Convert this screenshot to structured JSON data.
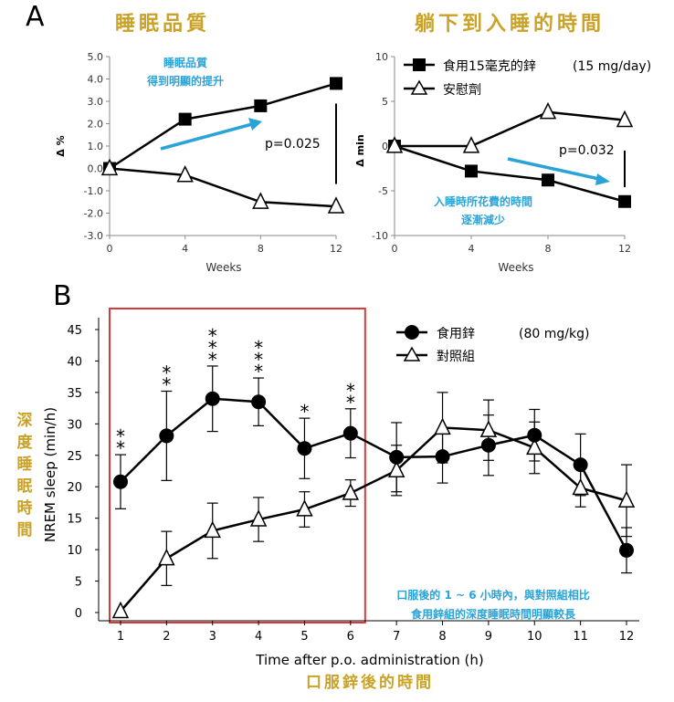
{
  "panel_a_letter": "A",
  "panel_b_letter": "B",
  "colors": {
    "gold": "#C9A227",
    "blue": "#2AA3D8",
    "red": "#D83A3A",
    "ink": "#000000"
  },
  "chart_data": [
    {
      "type": "line",
      "title": "睡眠品質",
      "xlabel": "Weeks",
      "ylabel": "Δ %",
      "x": [
        0,
        4,
        8,
        12
      ],
      "xticks": [
        "0",
        "4",
        "8",
        "12"
      ],
      "ylim": [
        -3,
        5
      ],
      "yticks": [
        "5.0",
        "4.0",
        "3.0",
        "2.0",
        "1.0",
        "0.0",
        "-1.0",
        "-2.0",
        "-3.0"
      ],
      "series": [
        {
          "marker": "square",
          "values": [
            0.0,
            2.2,
            2.8,
            3.8
          ]
        },
        {
          "marker": "triangle",
          "values": [
            0.0,
            -0.3,
            -1.5,
            -1.7
          ]
        }
      ],
      "annotation": {
        "line1": "睡眠品質",
        "line2": "得到明顯的提升"
      },
      "pvalue": "p=0.025",
      "grid": false
    },
    {
      "type": "line",
      "title": "躺下到入睡的時間",
      "xlabel": "Weeks",
      "ylabel": "Δ min",
      "x": [
        0,
        4,
        8,
        12
      ],
      "xticks": [
        "0",
        "4",
        "8",
        "12"
      ],
      "ylim": [
        -10,
        10
      ],
      "yticks": [
        "10",
        "5",
        "0",
        "-5",
        "-10"
      ],
      "series": [
        {
          "name": "食用15毫克的鋅",
          "marker": "square",
          "values": [
            0,
            -2.8,
            -3.8,
            -6.2
          ]
        },
        {
          "name": "安慰劑",
          "marker": "triangle",
          "values": [
            0,
            0,
            3.8,
            2.9
          ]
        }
      ],
      "legend_dose": "(15 mg/day)",
      "annotation": {
        "line1": "入睡時所花費的時間",
        "line2": "逐漸減少"
      },
      "pvalue": "p=0.032",
      "grid": false
    },
    {
      "type": "line",
      "xlabel": "Time after p.o. administration (h)",
      "xlabel_cn": "口服鋅後的時間",
      "ylabel": "NREM sleep (min/h)",
      "ylabel_cn": "深度睡眠時間",
      "x": [
        1,
        2,
        3,
        4,
        5,
        6,
        7,
        8,
        9,
        10,
        11,
        12
      ],
      "xticks": [
        "1",
        "2",
        "3",
        "4",
        "5",
        "6",
        "7",
        "8",
        "9",
        "10",
        "11",
        "12"
      ],
      "ylim": [
        0,
        45
      ],
      "yticks": [
        "45",
        "40",
        "35",
        "30",
        "25",
        "20",
        "15",
        "10",
        "5",
        "0"
      ],
      "series": [
        {
          "name": "食用鋅",
          "marker": "circle",
          "values": [
            20.8,
            28.1,
            34.0,
            33.5,
            26.1,
            28.5,
            24.7,
            24.8,
            26.6,
            28.2,
            23.5,
            9.9
          ],
          "errors": [
            4.3,
            7.1,
            5.2,
            3.8,
            4.8,
            3.9,
            5.5,
            4.2,
            4.8,
            4.1,
            4.9,
            3.6
          ]
        },
        {
          "name": "對照組",
          "marker": "triangle",
          "values": [
            0.2,
            8.6,
            13.0,
            14.8,
            16.4,
            19.0,
            22.6,
            29.4,
            29.0,
            26.2,
            19.8,
            17.8
          ],
          "errors": [
            0,
            4.3,
            4.4,
            3.5,
            2.8,
            2.1,
            4.0,
            5.6,
            4.8,
            4.1,
            3.0,
            5.7
          ]
        }
      ],
      "legend_dose": "(80 mg/kg)",
      "significance": [
        {
          "x": 1,
          "stars": [
            "*",
            "*"
          ]
        },
        {
          "x": 2,
          "stars": [
            "*",
            "*"
          ]
        },
        {
          "x": 3,
          "stars": [
            "*",
            "*",
            "*"
          ]
        },
        {
          "x": 4,
          "stars": [
            "*",
            "*",
            "*"
          ]
        },
        {
          "x": 5,
          "stars": [
            "*"
          ]
        },
        {
          "x": 6,
          "stars": [
            "*",
            "*"
          ]
        }
      ],
      "highlight_range": [
        1,
        6
      ],
      "annotation": {
        "line1": "口服後的 1 ~ 6 小時內，與對照組相比",
        "line2": "食用鋅組的深度睡眠時間明顯較長"
      },
      "grid": false
    }
  ]
}
